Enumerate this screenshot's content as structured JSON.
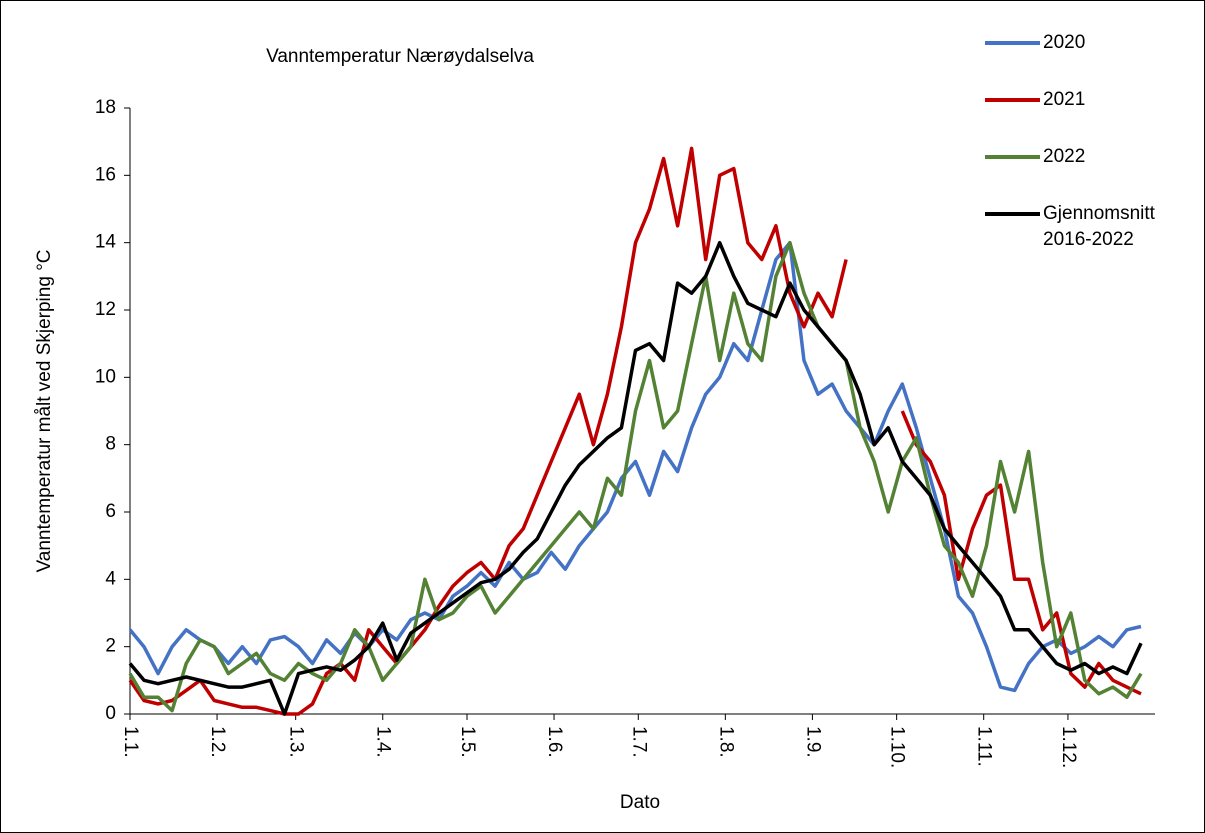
{
  "chart_data": {
    "type": "line",
    "title": "Vanntemperatur Nærøydalselva",
    "x_label": "Dato",
    "y_label": "Vanntemperatur målt ved Skjerping °C",
    "xlim": [
      1,
      366
    ],
    "ylim": [
      0,
      18
    ],
    "yticks": [
      0,
      2,
      4,
      6,
      8,
      10,
      12,
      14,
      16,
      18
    ],
    "xticks": [
      {
        "value": 1,
        "label": "1.1."
      },
      {
        "value": 32,
        "label": "1.2."
      },
      {
        "value": 60,
        "label": "1.3."
      },
      {
        "value": 91,
        "label": "1.4."
      },
      {
        "value": 121,
        "label": "1.5."
      },
      {
        "value": 152,
        "label": "1.6."
      },
      {
        "value": 182,
        "label": "1.7."
      },
      {
        "value": 213,
        "label": "1.8."
      },
      {
        "value": 244,
        "label": "1.9."
      },
      {
        "value": 274,
        "label": "1.10."
      },
      {
        "value": 305,
        "label": "1.11."
      },
      {
        "value": 335,
        "label": "1.12."
      }
    ],
    "legend": "top-right",
    "x": [
      1,
      6,
      11,
      16,
      21,
      26,
      31,
      36,
      41,
      46,
      51,
      56,
      61,
      66,
      71,
      76,
      81,
      86,
      91,
      96,
      101,
      106,
      111,
      116,
      121,
      126,
      131,
      136,
      141,
      146,
      151,
      156,
      161,
      166,
      171,
      176,
      181,
      186,
      191,
      196,
      201,
      206,
      211,
      216,
      221,
      226,
      231,
      236,
      241,
      246,
      251,
      256,
      261,
      266,
      271,
      276,
      281,
      286,
      291,
      296,
      301,
      306,
      311,
      316,
      321,
      326,
      331,
      336,
      341,
      346,
      351,
      356,
      361
    ],
    "series": [
      {
        "name": "2020",
        "color": "#4472c4",
        "values": [
          2.5,
          2.0,
          1.2,
          2.0,
          2.5,
          2.2,
          2.0,
          1.5,
          2.0,
          1.5,
          2.2,
          2.3,
          2.0,
          1.5,
          2.2,
          1.8,
          2.4,
          2.0,
          2.5,
          2.2,
          2.8,
          3.0,
          2.8,
          3.5,
          3.8,
          4.2,
          3.8,
          4.5,
          4.0,
          4.2,
          4.8,
          4.3,
          5.0,
          5.5,
          6.0,
          7.0,
          7.5,
          6.5,
          7.8,
          7.2,
          8.5,
          9.5,
          10.0,
          11.0,
          10.5,
          12.0,
          13.5,
          14.0,
          10.5,
          9.5,
          9.8,
          9.0,
          8.5,
          8.0,
          9.0,
          9.8,
          8.5,
          7.0,
          5.5,
          3.5,
          3.0,
          2.0,
          0.8,
          0.7,
          1.5,
          2.0,
          2.2,
          1.8,
          2.0,
          2.3,
          2.0,
          2.5,
          2.6
        ]
      },
      {
        "name": "2021",
        "color": "#c00000",
        "values": [
          1.0,
          0.4,
          0.3,
          0.4,
          0.7,
          1.0,
          0.4,
          0.3,
          0.2,
          0.2,
          0.1,
          0.0,
          0.0,
          0.3,
          1.2,
          1.5,
          1.0,
          2.5,
          2.0,
          1.5,
          2.0,
          2.5,
          3.2,
          3.8,
          4.2,
          4.5,
          4.0,
          5.0,
          5.5,
          6.5,
          7.5,
          8.5,
          9.5,
          8.0,
          9.5,
          11.5,
          14.0,
          15.0,
          16.5,
          14.5,
          16.8,
          13.5,
          16.0,
          16.2,
          14.0,
          13.5,
          14.5,
          12.5,
          11.5,
          12.5,
          11.8,
          13.5,
          null,
          null,
          null,
          9.0,
          8.0,
          7.5,
          6.5,
          4.0,
          5.5,
          6.5,
          6.8,
          4.0,
          4.0,
          2.5,
          3.0,
          1.2,
          0.8,
          1.5,
          1.0,
          0.8,
          0.6
        ]
      },
      {
        "name": "2022",
        "color": "#548235",
        "values": [
          1.2,
          0.5,
          0.5,
          0.1,
          1.5,
          2.2,
          2.0,
          1.2,
          1.5,
          1.8,
          1.2,
          1.0,
          1.5,
          1.2,
          1.0,
          1.5,
          2.5,
          2.0,
          1.0,
          1.5,
          2.0,
          4.0,
          2.8,
          3.0,
          3.5,
          3.8,
          3.0,
          3.5,
          4.0,
          4.5,
          5.0,
          5.5,
          6.0,
          5.5,
          7.0,
          6.5,
          9.0,
          10.5,
          8.5,
          9.0,
          11.0,
          13.0,
          10.5,
          12.5,
          11.0,
          10.5,
          13.0,
          14.0,
          12.5,
          11.5,
          11.0,
          10.5,
          8.5,
          7.5,
          6.0,
          7.5,
          8.2,
          6.5,
          5.0,
          4.5,
          3.5,
          5.0,
          7.5,
          6.0,
          7.8,
          4.5,
          2.0,
          3.0,
          1.0,
          0.6,
          0.8,
          0.5,
          1.2
        ]
      },
      {
        "name": "Gjennomsnitt 2016-2022",
        "color": "#000000",
        "values": [
          1.5,
          1.0,
          0.9,
          1.0,
          1.1,
          1.0,
          0.9,
          0.8,
          0.8,
          0.9,
          1.0,
          0.0,
          1.2,
          1.3,
          1.4,
          1.3,
          1.6,
          2.0,
          2.7,
          1.6,
          2.4,
          2.7,
          3.0,
          3.3,
          3.6,
          3.9,
          4.0,
          4.3,
          4.8,
          5.2,
          6.0,
          6.8,
          7.4,
          7.8,
          8.2,
          8.5,
          10.8,
          11.0,
          10.5,
          12.8,
          12.5,
          13.0,
          14.0,
          13.0,
          12.2,
          12.0,
          11.8,
          12.8,
          12.0,
          11.5,
          11.0,
          10.5,
          9.5,
          8.0,
          8.5,
          7.5,
          7.0,
          6.5,
          5.5,
          5.0,
          4.5,
          4.0,
          3.5,
          2.5,
          2.5,
          2.0,
          1.5,
          1.3,
          1.5,
          1.2,
          1.4,
          1.2,
          2.1
        ]
      }
    ]
  }
}
